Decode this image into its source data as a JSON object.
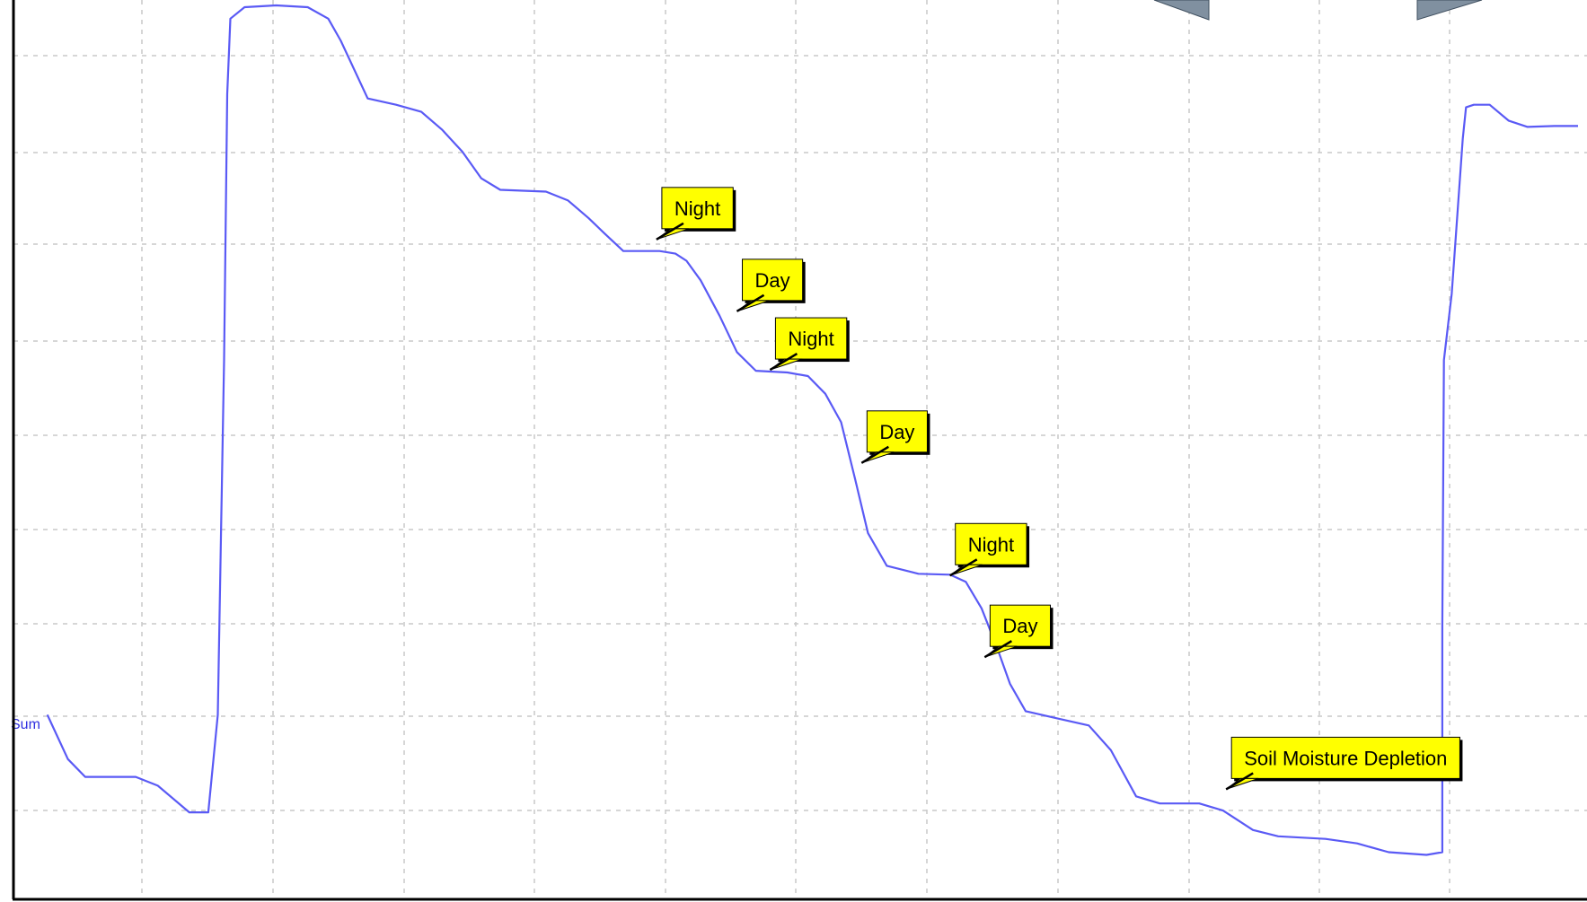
{
  "chart_data": {
    "type": "line",
    "title": "",
    "xlabel": "",
    "ylabel": "",
    "xlim": [
      0,
      100
    ],
    "ylim": [
      0,
      100
    ],
    "grid": true,
    "series": [
      {
        "name": "Sum",
        "color": "#5a5af5",
        "points": [
          [
            3.0,
            20.0
          ],
          [
            4.3,
            15.0
          ],
          [
            5.4,
            13.0
          ],
          [
            8.6,
            13.0
          ],
          [
            10.0,
            12.0
          ],
          [
            12.0,
            9.0
          ],
          [
            13.2,
            9.0
          ],
          [
            13.8,
            20.0
          ],
          [
            14.2,
            60.0
          ],
          [
            14.4,
            90.0
          ],
          [
            14.6,
            98.5
          ],
          [
            15.5,
            99.8
          ],
          [
            17.5,
            100.0
          ],
          [
            19.5,
            99.8
          ],
          [
            20.8,
            98.5
          ],
          [
            21.6,
            96.0
          ],
          [
            23.3,
            89.5
          ],
          [
            25.1,
            88.8
          ],
          [
            26.7,
            88.0
          ],
          [
            28.0,
            86.0
          ],
          [
            29.3,
            83.5
          ],
          [
            30.5,
            80.5
          ],
          [
            31.7,
            79.2
          ],
          [
            34.6,
            79.0
          ],
          [
            36.0,
            78.0
          ],
          [
            37.3,
            76.0
          ],
          [
            38.3,
            74.3
          ],
          [
            39.5,
            72.3
          ],
          [
            41.8,
            72.3
          ],
          [
            42.8,
            72.0
          ],
          [
            43.5,
            71.2
          ],
          [
            44.4,
            69.0
          ],
          [
            45.6,
            65.0
          ],
          [
            46.7,
            60.9
          ],
          [
            47.9,
            58.8
          ],
          [
            49.9,
            58.6
          ],
          [
            51.2,
            58.2
          ],
          [
            52.3,
            56.2
          ],
          [
            53.3,
            53.0
          ],
          [
            54.2,
            46.5
          ],
          [
            55.0,
            40.5
          ],
          [
            56.2,
            36.8
          ],
          [
            58.2,
            35.9
          ],
          [
            60.2,
            35.8
          ],
          [
            61.2,
            35.0
          ],
          [
            62.2,
            32.0
          ],
          [
            63.2,
            27.5
          ],
          [
            64.0,
            23.5
          ],
          [
            65.0,
            20.4
          ],
          [
            67.0,
            19.6
          ],
          [
            69.0,
            18.8
          ],
          [
            70.4,
            16.0
          ],
          [
            72.0,
            10.8
          ],
          [
            73.5,
            10.0
          ],
          [
            76.0,
            10.0
          ],
          [
            77.5,
            9.2
          ],
          [
            79.4,
            7.0
          ],
          [
            81.0,
            6.3
          ],
          [
            84.0,
            6.0
          ],
          [
            86.0,
            5.5
          ],
          [
            88.0,
            4.5
          ],
          [
            90.4,
            4.2
          ],
          [
            91.4,
            4.5
          ],
          [
            91.4,
            30.0
          ],
          [
            91.5,
            60.0
          ],
          [
            92.0,
            67.5
          ],
          [
            92.7,
            85.0
          ],
          [
            92.9,
            88.5
          ],
          [
            93.4,
            88.8
          ],
          [
            94.4,
            88.8
          ],
          [
            95.6,
            87.0
          ],
          [
            96.8,
            86.3
          ],
          [
            98.5,
            86.4
          ],
          [
            100.0,
            86.4
          ]
        ]
      }
    ],
    "series_label": "Sum",
    "annotations": [
      {
        "text": "Night",
        "x": 41.6,
        "y": 73.6
      },
      {
        "text": "Day",
        "x": 46.7,
        "y": 65.5
      },
      {
        "text": "Night",
        "x": 48.8,
        "y": 58.9
      },
      {
        "text": "Day",
        "x": 54.6,
        "y": 48.4
      },
      {
        "text": "Night",
        "x": 60.2,
        "y": 35.7
      },
      {
        "text": "Day",
        "x": 62.4,
        "y": 26.5
      },
      {
        "text": "Soil Moisture Depletion",
        "x": 77.7,
        "y": 11.6
      }
    ]
  }
}
